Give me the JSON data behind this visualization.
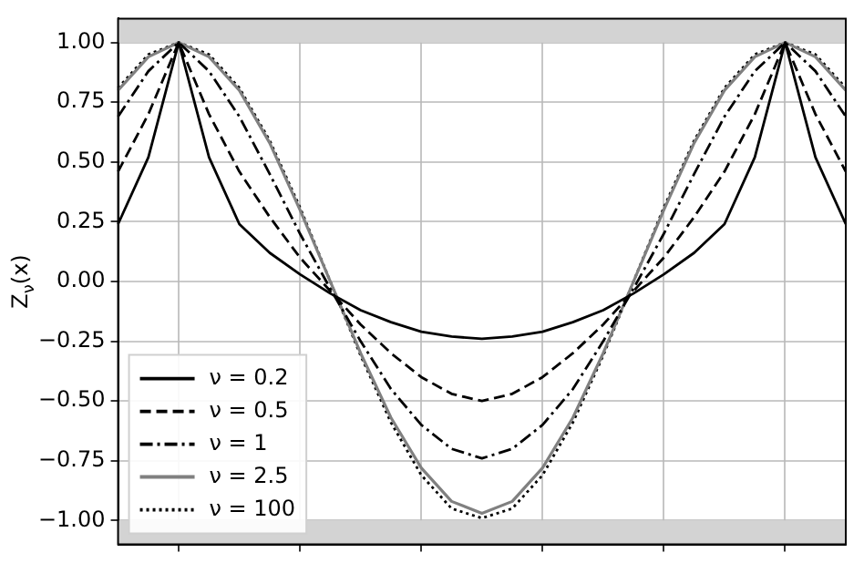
{
  "chart_data": {
    "type": "line",
    "ylabel": "Z$_{ν}$(x)",
    "categories": [
      null,
      null,
      null,
      null,
      null,
      null,
      null,
      null,
      null,
      null,
      null,
      null,
      null,
      null,
      null,
      null,
      null,
      null,
      null,
      null,
      null,
      null,
      null,
      null,
      null
    ],
    "ylim": [
      -1.1,
      1.1
    ],
    "yticks": [
      {
        "value": -1,
        "label": "−1.00"
      },
      {
        "value": -0.75,
        "label": "−0.75"
      },
      {
        "value": -0.5,
        "label": "−0.50"
      },
      {
        "value": -0.25,
        "label": "−0.25"
      },
      {
        "value": 0,
        "label": "0.00"
      },
      {
        "value": 0.25,
        "label": "0.25"
      },
      {
        "value": 0.5,
        "label": "0.50"
      },
      {
        "value": 0.75,
        "label": "0.75"
      },
      {
        "value": 1,
        "label": "1.00"
      }
    ],
    "tick_labels": "y",
    "grid": true,
    "legend": "bottom left",
    "marker": "none",
    "bands": [
      {
        "axis": "y",
        "from": 1,
        "to": 1.1,
        "color": "#d3d3d3"
      },
      {
        "axis": "y",
        "from": -1.1,
        "to": -1,
        "color": "#d3d3d3"
      }
    ],
    "series": [
      {
        "name": "ν = 0.2",
        "color": "#000000",
        "line_style": "solid",
        "values": [
          0.24,
          0.52,
          1,
          0.52,
          0.24,
          0.12,
          0.03,
          -0.05,
          -0.12,
          -0.17,
          -0.21,
          -0.23,
          -0.24,
          -0.23,
          -0.21,
          -0.17,
          -0.12,
          -0.05,
          0.03,
          0.12,
          0.24,
          0.52,
          1,
          0.52,
          0.24
        ]
      },
      {
        "name": "ν = 0.5",
        "color": "#000000",
        "line_style": "dashed",
        "values": [
          0.46,
          0.7,
          1,
          0.7,
          0.46,
          0.27,
          0.1,
          -0.04,
          -0.18,
          -0.3,
          -0.4,
          -0.47,
          -0.5,
          -0.47,
          -0.4,
          -0.3,
          -0.18,
          -0.04,
          0.1,
          0.27,
          0.46,
          0.7,
          1,
          0.7,
          0.46
        ]
      },
      {
        "name": "ν = 1",
        "color": "#000000",
        "line_style": "dashdot",
        "values": [
          0.69,
          0.88,
          1,
          0.88,
          0.69,
          0.45,
          0.2,
          -0.03,
          -0.25,
          -0.45,
          -0.6,
          -0.7,
          -0.74,
          -0.7,
          -0.6,
          -0.45,
          -0.25,
          -0.03,
          0.2,
          0.45,
          0.69,
          0.88,
          1,
          0.88,
          0.69
        ]
      },
      {
        "name": "ν = 2.5",
        "color": "#808080",
        "line_style": "solid",
        "values": [
          0.8,
          0.94,
          1,
          0.94,
          0.8,
          0.58,
          0.3,
          0,
          -0.3,
          -0.57,
          -0.78,
          -0.92,
          -0.97,
          -0.92,
          -0.78,
          -0.57,
          -0.3,
          0,
          0.3,
          0.58,
          0.8,
          0.94,
          1,
          0.94,
          0.8
        ]
      },
      {
        "name": "ν = 100",
        "color": "#000000",
        "line_style": "dotted",
        "values": [
          0.81,
          0.95,
          1,
          0.95,
          0.81,
          0.59,
          0.31,
          0,
          -0.31,
          -0.59,
          -0.81,
          -0.95,
          -0.99,
          -0.95,
          -0.81,
          -0.59,
          -0.31,
          0,
          0.31,
          0.59,
          0.81,
          0.95,
          1,
          0.95,
          0.81
        ]
      }
    ]
  }
}
